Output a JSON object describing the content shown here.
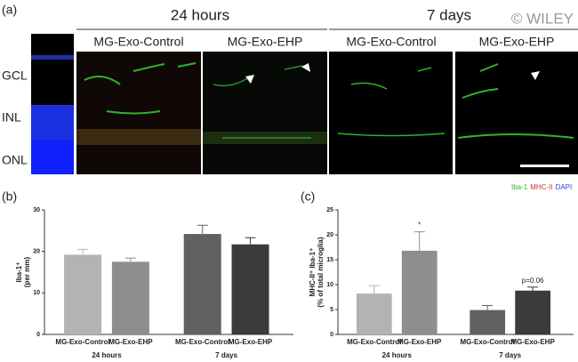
{
  "panel_a": {
    "label": "(a)",
    "time_labels": [
      "24 hours",
      "7 days"
    ],
    "condition_labels": [
      "MG-Exo-Control",
      "MG-Exo-EHP",
      "MG-Exo-Control",
      "MG-Exo-EHP"
    ],
    "layer_labels": [
      "GCL",
      "INL",
      "ONL"
    ],
    "watermark": "© WILEY",
    "stain_legend": [
      {
        "name": "Iba-1",
        "color": "#2db52d"
      },
      {
        "name": "MHC-II",
        "color": "#e0302a"
      },
      {
        "name": "DAPI",
        "color": "#2a3fd6"
      }
    ]
  },
  "chart_data": [
    {
      "type": "bar",
      "panel_label": "(b)",
      "ylabel": [
        "Iba-1⁺",
        "(per mm)"
      ],
      "categories": [
        "MG-Exo-Control",
        "MG-Exo-EHP",
        "MG-Exo-Control",
        "MG-Exo-EHP"
      ],
      "groups": [
        "24 hours",
        "7 days"
      ],
      "values": [
        19.2,
        17.5,
        24.2,
        21.7
      ],
      "errors": [
        1.3,
        0.9,
        2.1,
        1.6
      ],
      "colors": [
        "#b3b3b3",
        "#8e8e8e",
        "#616161",
        "#3b3b3b"
      ],
      "ylim": [
        0,
        30
      ],
      "yticks": [
        0,
        10,
        20,
        30
      ]
    },
    {
      "type": "bar",
      "panel_label": "(c)",
      "ylabel": [
        "MHC-II⁺ Iba-1⁺",
        "(% of total microglia)"
      ],
      "categories": [
        "MG-Exo-Control",
        "MG-Exo-EHP",
        "MG-Exo-Control",
        "MG-Exo-EHP"
      ],
      "groups": [
        "24 hours",
        "7 days"
      ],
      "values": [
        8.2,
        16.8,
        4.9,
        8.8
      ],
      "errors": [
        1.6,
        3.8,
        0.9,
        0.7
      ],
      "annotations": [
        null,
        "*",
        null,
        "p=0.06"
      ],
      "colors": [
        "#b3b3b3",
        "#8e8e8e",
        "#616161",
        "#3b3b3b"
      ],
      "ylim": [
        0,
        25
      ],
      "yticks": [
        0,
        5,
        10,
        15,
        20,
        25
      ]
    }
  ]
}
